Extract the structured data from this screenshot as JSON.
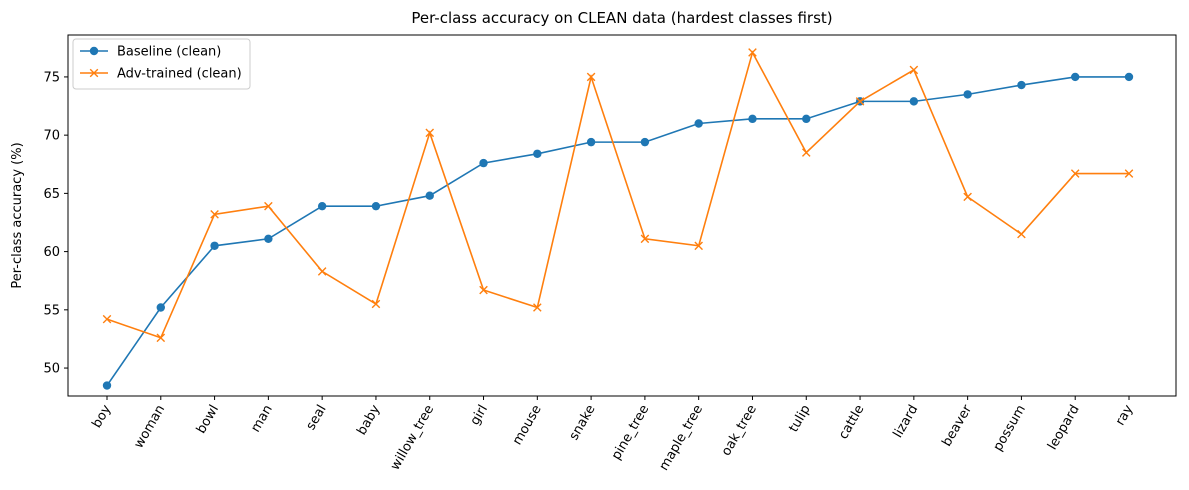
{
  "chart_data": {
    "type": "line",
    "title": "Per-class accuracy on CLEAN data (hardest classes first)",
    "xlabel": "",
    "ylabel": "Per-class accuracy (%)",
    "ylim": [
      47.6,
      78.6
    ],
    "yticks": [
      50,
      55,
      60,
      65,
      70,
      75
    ],
    "grid": false,
    "legend_position": "top-left",
    "categories": [
      "boy",
      "woman",
      "bowl",
      "man",
      "seal",
      "baby",
      "willow_tree",
      "girl",
      "mouse",
      "snake",
      "pine_tree",
      "maple_tree",
      "oak_tree",
      "tulip",
      "cattle",
      "lizard",
      "beaver",
      "possum",
      "leopard",
      "ray"
    ],
    "series": [
      {
        "name": "Baseline (clean)",
        "color": "#1f77b4",
        "marker": "circle",
        "values": [
          48.5,
          55.2,
          60.5,
          61.1,
          63.9,
          63.9,
          64.8,
          67.6,
          68.4,
          69.4,
          69.4,
          71.0,
          71.4,
          71.4,
          72.9,
          72.9,
          73.5,
          74.3,
          75.0,
          75.0
        ]
      },
      {
        "name": "Adv-trained (clean)",
        "color": "#ff7f0e",
        "marker": "x",
        "values": [
          54.2,
          52.6,
          63.2,
          63.9,
          58.3,
          55.5,
          70.2,
          56.7,
          55.2,
          75.0,
          61.1,
          60.5,
          77.1,
          68.5,
          72.9,
          75.6,
          64.7,
          61.5,
          66.7,
          66.7
        ]
      }
    ]
  }
}
